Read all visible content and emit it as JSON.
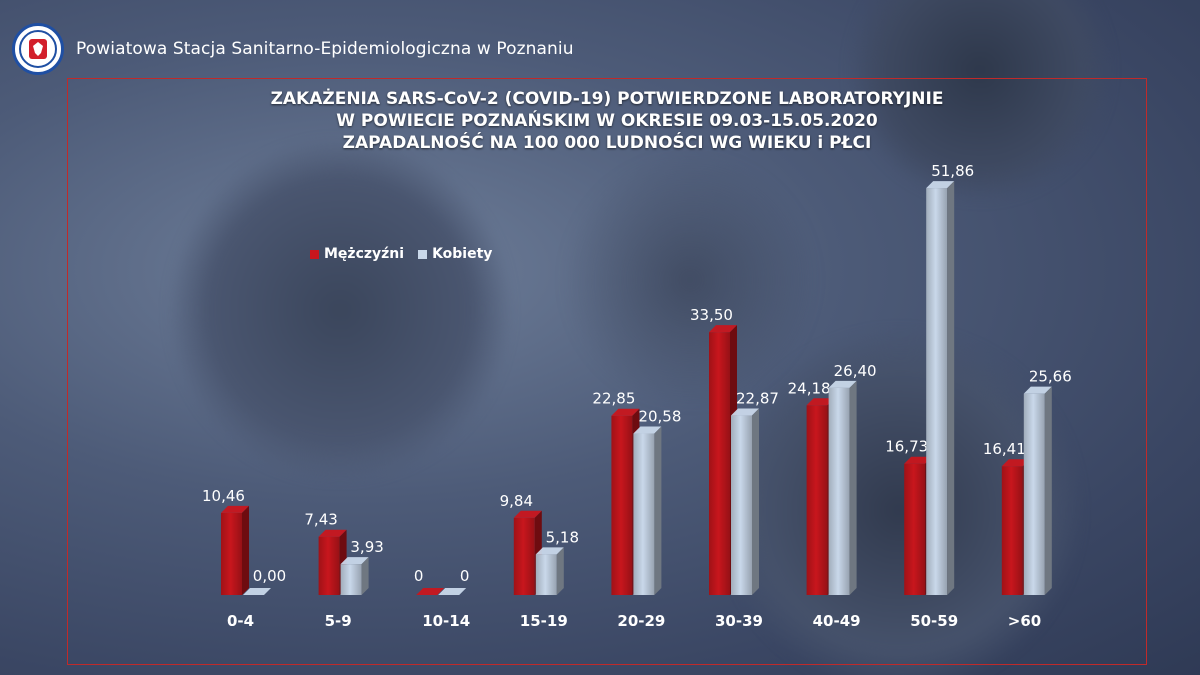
{
  "header": {
    "title": "Powiatowa Stacja Sanitarno-Epidemiologiczna w Poznaniu",
    "logo_icon": "sanepid-logo-icon"
  },
  "chart_data": {
    "type": "bar",
    "title": [
      "ZAKAŻENIA SARS-CoV-2 (COVID-19) POTWIERDZONE LABORATORYJNIE",
      "W POWIECIE POZNAŃSKIM W OKRESIE 09.03-15.05.2020",
      "ZAPADALNOŚĆ NA 100 000 LUDNOŚCI WG WIEKU i PŁCI"
    ],
    "categories": [
      "0-4",
      "5-9",
      "10-14",
      "15-19",
      "20-29",
      "30-39",
      "40-49",
      "50-59",
      ">60"
    ],
    "series": [
      {
        "name": "Mężczyźni",
        "color": "#c8161d",
        "values": [
          10.46,
          7.43,
          0,
          9.84,
          22.85,
          33.5,
          24.18,
          16.73,
          16.41
        ],
        "labels": [
          "10,46",
          "7,43",
          "0",
          "9,84",
          "22,85",
          "33,50",
          "24,18",
          "16,73",
          "16,41"
        ]
      },
      {
        "name": "Kobiety",
        "color": "#c9d8ea",
        "values": [
          0.0,
          3.93,
          0,
          5.18,
          20.58,
          22.87,
          26.4,
          51.86,
          25.66
        ],
        "labels": [
          "0,00",
          "3,93",
          "0",
          "5,18",
          "20,58",
          "22,87",
          "26,40",
          "51,86",
          "25,66"
        ]
      }
    ],
    "ylim": [
      0,
      52
    ],
    "grid": false,
    "legend_position": "top-left"
  }
}
